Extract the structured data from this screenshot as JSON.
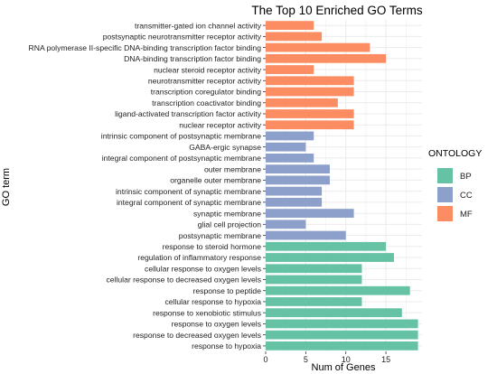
{
  "chart_data": {
    "type": "bar",
    "orientation": "horizontal",
    "title": "The Top 10 Enriched GO Terms",
    "xlabel": "Num of Genes",
    "ylabel": "GO term",
    "xlim": [
      0,
      19.5
    ],
    "xticks": [
      "0",
      "5",
      "10",
      "15"
    ],
    "grid": true,
    "legend_position": "right",
    "legend": {
      "title": "ONTOLOGY",
      "items": [
        {
          "label": "BP",
          "color": "#66c2a5"
        },
        {
          "label": "CC",
          "color": "#8da0cb"
        },
        {
          "label": "MF",
          "color": "#fc8d62"
        }
      ]
    },
    "categories": [
      "transmitter-gated ion channel activity",
      "postsynaptic neurotransmitter receptor activity",
      "RNA polymerase II-specific DNA-binding transcription factor binding",
      "DNA-binding transcription factor binding",
      "nuclear steroid receptor activity",
      "neurotransmitter receptor activity",
      "transcription coregulator binding",
      "transcription coactivator binding",
      "ligand-activated transcription factor activity",
      "nuclear receptor activity",
      "intrinsic component of postsynaptic membrane",
      "GABA-ergic synapse",
      "integral component of postsynaptic membrane",
      "outer membrane",
      "organelle outer membrane",
      "intrinsic component of synaptic membrane",
      "integral component of synaptic membrane",
      "synaptic membrane",
      "glial cell projection",
      "postsynaptic membrane",
      "response to steroid hormone",
      "regulation of inflammatory response",
      "cellular response to oxygen levels",
      "cellular response to decreased oxygen levels",
      "response to peptide",
      "cellular response to hypoxia",
      "response to xenobiotic stimulus",
      "response to oxygen levels",
      "response to decreased oxygen levels",
      "response to hypoxia"
    ],
    "ontology": [
      "MF",
      "MF",
      "MF",
      "MF",
      "MF",
      "MF",
      "MF",
      "MF",
      "MF",
      "MF",
      "CC",
      "CC",
      "CC",
      "CC",
      "CC",
      "CC",
      "CC",
      "CC",
      "CC",
      "CC",
      "BP",
      "BP",
      "BP",
      "BP",
      "BP",
      "BP",
      "BP",
      "BP",
      "BP",
      "BP"
    ],
    "values": [
      6,
      7,
      13,
      15,
      6,
      11,
      11,
      9,
      11,
      11,
      6,
      5,
      6,
      8,
      8,
      7,
      7,
      11,
      5,
      10,
      15,
      16,
      12,
      12,
      18,
      12,
      17,
      19,
      19,
      19
    ]
  }
}
